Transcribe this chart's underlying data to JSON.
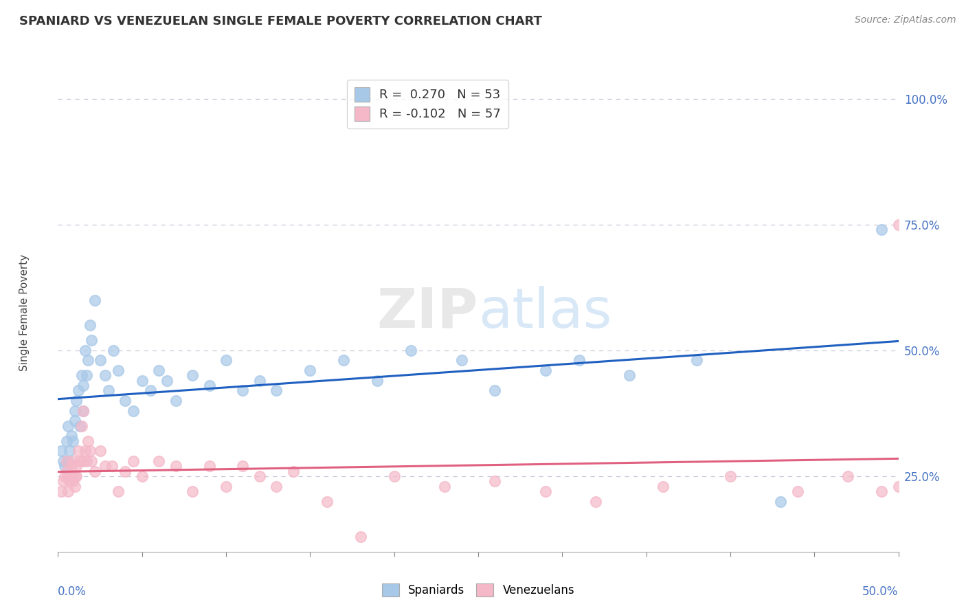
{
  "title": "SPANIARD VS VENEZUELAN SINGLE FEMALE POVERTY CORRELATION CHART",
  "source": "Source: ZipAtlas.com",
  "ylabel": "Single Female Poverty",
  "ytick_values": [
    0.25,
    0.5,
    0.75,
    1.0
  ],
  "xlim": [
    0.0,
    0.5
  ],
  "ylim": [
    0.1,
    1.05
  ],
  "spaniards_color": "#a8c8e8",
  "venezuelans_color": "#f4b8c8",
  "trendline_spaniards_color": "#2060c0",
  "trendline_venezuelans_color": "#e06080",
  "legend_label_1": "R =  0.270   N = 53",
  "legend_label_2": "R = -0.102   N = 57",
  "background_color": "#ffffff",
  "grid_color": "#c8c8d8",
  "spaniards_x": [
    0.002,
    0.003,
    0.004,
    0.005,
    0.006,
    0.006,
    0.007,
    0.008,
    0.009,
    0.01,
    0.01,
    0.011,
    0.012,
    0.013,
    0.014,
    0.015,
    0.015,
    0.016,
    0.017,
    0.018,
    0.019,
    0.02,
    0.022,
    0.025,
    0.028,
    0.03,
    0.033,
    0.036,
    0.04,
    0.045,
    0.05,
    0.055,
    0.06,
    0.065,
    0.07,
    0.08,
    0.09,
    0.1,
    0.11,
    0.12,
    0.13,
    0.15,
    0.17,
    0.19,
    0.21,
    0.24,
    0.26,
    0.29,
    0.31,
    0.34,
    0.38,
    0.43,
    0.49
  ],
  "spaniards_y": [
    0.3,
    0.28,
    0.27,
    0.32,
    0.28,
    0.35,
    0.3,
    0.33,
    0.32,
    0.36,
    0.38,
    0.4,
    0.42,
    0.35,
    0.45,
    0.38,
    0.43,
    0.5,
    0.45,
    0.48,
    0.55,
    0.52,
    0.6,
    0.48,
    0.45,
    0.42,
    0.5,
    0.46,
    0.4,
    0.38,
    0.44,
    0.42,
    0.46,
    0.44,
    0.4,
    0.45,
    0.43,
    0.48,
    0.42,
    0.44,
    0.42,
    0.46,
    0.48,
    0.44,
    0.5,
    0.48,
    0.42,
    0.46,
    0.48,
    0.45,
    0.48,
    0.2,
    0.74
  ],
  "venezuelans_x": [
    0.002,
    0.003,
    0.004,
    0.005,
    0.005,
    0.006,
    0.006,
    0.007,
    0.008,
    0.008,
    0.009,
    0.009,
    0.01,
    0.01,
    0.011,
    0.011,
    0.012,
    0.013,
    0.014,
    0.015,
    0.015,
    0.016,
    0.017,
    0.018,
    0.019,
    0.02,
    0.022,
    0.025,
    0.028,
    0.032,
    0.036,
    0.04,
    0.045,
    0.05,
    0.06,
    0.07,
    0.08,
    0.09,
    0.1,
    0.11,
    0.12,
    0.13,
    0.14,
    0.16,
    0.18,
    0.2,
    0.23,
    0.26,
    0.29,
    0.32,
    0.36,
    0.4,
    0.44,
    0.47,
    0.49,
    0.5,
    0.5
  ],
  "venezuelans_y": [
    0.22,
    0.24,
    0.25,
    0.26,
    0.28,
    0.22,
    0.25,
    0.24,
    0.25,
    0.27,
    0.24,
    0.28,
    0.23,
    0.25,
    0.25,
    0.27,
    0.3,
    0.28,
    0.35,
    0.28,
    0.38,
    0.3,
    0.28,
    0.32,
    0.3,
    0.28,
    0.26,
    0.3,
    0.27,
    0.27,
    0.22,
    0.26,
    0.28,
    0.25,
    0.28,
    0.27,
    0.22,
    0.27,
    0.23,
    0.27,
    0.25,
    0.23,
    0.26,
    0.2,
    0.13,
    0.25,
    0.23,
    0.24,
    0.22,
    0.2,
    0.23,
    0.25,
    0.22,
    0.25,
    0.22,
    0.23,
    0.75
  ]
}
